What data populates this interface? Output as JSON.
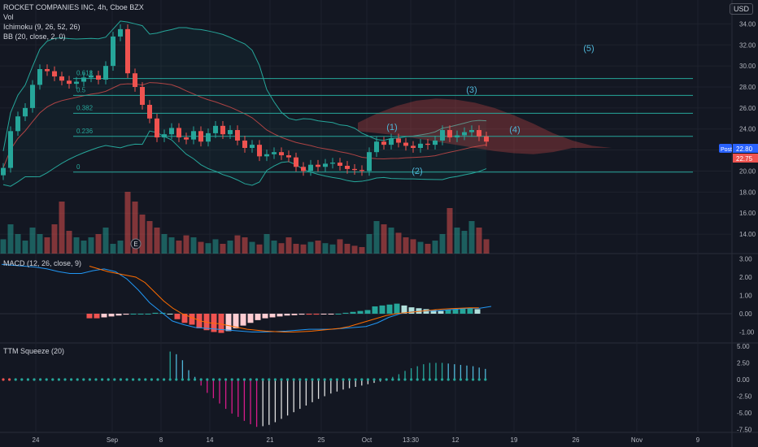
{
  "header": {
    "title": "ROCKET COMPANIES INC, 4h, Cboe BZX",
    "vol_label": "Vol",
    "ichimoku_label": "Ichimoku (9, 26, 52, 26)",
    "bb_label": "BB (20, close, 2, 0)",
    "currency": "USD"
  },
  "macd_label": "MACD (12, 26, close, 9)",
  "squeeze_label": "TTM Squeeze (20)",
  "price_tags": {
    "post_label": "Post",
    "post_value": "22.80",
    "last_value": "22.75"
  },
  "earnings_marker": "E",
  "colors": {
    "up": "#26a69a",
    "down": "#ef5350",
    "bg": "#131722",
    "grid": "#1e222d",
    "fib": "#26a69a"
  },
  "chart_data": [
    {
      "type": "candlestick",
      "title": "ROCKET COMPANIES INC, 4h, Cboe BZX",
      "ylim": [
        13,
        35.5
      ],
      "y_ticks": [
        "14.00",
        "16.00",
        "18.00",
        "20.00",
        "22.00",
        "24.00",
        "26.00",
        "28.00",
        "30.00",
        "32.00",
        "34.00"
      ],
      "x_ticks": [
        "24",
        "Sep",
        "8",
        "14",
        "21",
        "25",
        "Oct",
        "13:30",
        "12",
        "19",
        "26",
        "Nov",
        "9"
      ],
      "close": [
        20.3,
        23.8,
        25.2,
        26.0,
        28.2,
        29.7,
        29.5,
        29.0,
        28.6,
        28.3,
        28.5,
        28.9,
        29.1,
        28.7,
        30.0,
        32.8,
        33.5,
        29.3,
        28.0,
        26.3,
        25.0,
        23.2,
        23.5,
        24.1,
        23.2,
        23.0,
        23.8,
        22.8,
        23.6,
        24.3,
        23.5,
        23.9,
        22.9,
        22.2,
        22.5,
        21.4,
        21.6,
        21.8,
        21.5,
        21.3,
        20.4,
        20.0,
        20.6,
        20.4,
        20.7,
        20.8,
        20.5,
        20.2,
        20.1,
        20.0,
        21.8,
        22.8,
        22.5,
        23.1,
        22.7,
        22.4,
        22.2,
        22.6,
        22.5,
        22.9,
        23.9,
        23.2,
        23.4,
        23.7,
        23.9,
        23.3,
        22.8
      ],
      "volume_ylim": [
        0,
        100
      ],
      "volume": [
        22,
        45,
        30,
        20,
        40,
        30,
        25,
        45,
        80,
        35,
        25,
        20,
        25,
        30,
        40,
        15,
        20,
        95,
        80,
        60,
        50,
        40,
        30,
        25,
        20,
        28,
        25,
        18,
        16,
        22,
        15,
        20,
        28,
        25,
        18,
        14,
        30,
        20,
        16,
        25,
        15,
        14,
        18,
        20,
        16,
        14,
        22,
        15,
        12,
        10,
        30,
        50,
        45,
        40,
        32,
        25,
        22,
        18,
        15,
        20,
        30,
        70,
        40,
        35,
        50,
        40,
        22
      ],
      "ichimoku_cloud": {
        "top": [
          24.6,
          25.5,
          26.2,
          26.7,
          26.9,
          26.8,
          26.5,
          26.0,
          25.3,
          24.5,
          23.6,
          22.9,
          22.4,
          22.2
        ],
        "bottom": [
          23.8,
          23.6,
          23.4,
          23.1,
          22.8,
          22.5,
          22.2,
          21.9,
          21.7,
          21.6,
          21.8,
          22.2,
          22.2,
          22.2
        ]
      },
      "fib_levels": [
        {
          "label": "0.618",
          "value": 28.8
        },
        {
          "label": "0.5",
          "value": 27.2
        },
        {
          "label": "0.382",
          "value": 25.5
        },
        {
          "label": "0.236",
          "value": 23.3
        },
        {
          "label": "0",
          "value": 19.9
        }
      ],
      "wave_labels": [
        "(1)",
        "(2)",
        "(3)",
        "(4)",
        "(5)"
      ]
    },
    {
      "type": "histogram",
      "title": "MACD (12, 26, close, 9)",
      "ylim": [
        -1.3,
        3.2
      ],
      "y_ticks": [
        "3.00",
        "2.00",
        "1.00",
        "0.00",
        "-1.00"
      ],
      "histogram": [
        -0.25,
        -0.25,
        -0.2,
        -0.15,
        -0.1,
        -0.05,
        0,
        0,
        0,
        0.05,
        0.05,
        0,
        -0.3,
        -0.5,
        -0.6,
        -0.8,
        -0.9,
        -1.0,
        -1.05,
        -0.95,
        -0.8,
        -0.65,
        -0.5,
        -0.35,
        -0.25,
        -0.2,
        -0.15,
        -0.1,
        -0.08,
        -0.05,
        -0.05,
        -0.05,
        -0.03,
        -0.02,
        0,
        0.05,
        0.1,
        0.15,
        0.2,
        0.4,
        0.45,
        0.5,
        0.55,
        0.45,
        0.35,
        0.3,
        0.25,
        0.2,
        0.15,
        0.2,
        0.25,
        0.3,
        0.3,
        0.25
      ],
      "macd": [
        2.7,
        2.65,
        2.6,
        2.55,
        2.45,
        2.3,
        2.2,
        2.2,
        2.35,
        2.45,
        2.3,
        1.9,
        1.3,
        0.6,
        0.1,
        -0.4,
        -0.6,
        -0.75,
        -0.8,
        -0.85,
        -0.9,
        -0.95,
        -1.0,
        -1.0,
        -0.98,
        -0.95,
        -0.9,
        -0.85,
        -0.85,
        -0.85,
        -0.8,
        -0.75,
        -0.7,
        -0.5,
        -0.2,
        0,
        0.1,
        0.15,
        0.15,
        0.2,
        0.25,
        0.3,
        0.3,
        0.4
      ],
      "signal": [
        2.6,
        2.45,
        2.3,
        2.2,
        2.1,
        2.0,
        1.7,
        1.2,
        0.7,
        0.3,
        0,
        -0.2,
        -0.4,
        -0.5,
        -0.55,
        -0.65,
        -0.75,
        -0.85,
        -0.9,
        -0.95,
        -0.98,
        -1.0,
        -1.0,
        -0.98,
        -0.95,
        -0.9,
        -0.85,
        -0.8,
        -0.7,
        -0.55,
        -0.4,
        -0.25,
        -0.1,
        0,
        0.05,
        0.1,
        0.15,
        0.2,
        0.25,
        0.28,
        0.3,
        0.32,
        0.32
      ]
    },
    {
      "type": "histogram",
      "title": "TTM Squeeze (20)",
      "ylim": [
        -8,
        5.5
      ],
      "y_ticks": [
        "5.00",
        "2.50",
        "0.00",
        "-2.50",
        "-5.00",
        "-7.50"
      ],
      "values": [
        0,
        0,
        0,
        0,
        0,
        0,
        0,
        0,
        0,
        0,
        0,
        0,
        0,
        0,
        0,
        0,
        0,
        0,
        0,
        0,
        0,
        0,
        0,
        0,
        0,
        0,
        0,
        4.2,
        3.8,
        2.9,
        1.4,
        0.4,
        -0.9,
        -2.0,
        -2.8,
        -3.6,
        -4.4,
        -5.1,
        -5.6,
        -6.2,
        -6.7,
        -7.1,
        -7.0,
        -6.8,
        -6.4,
        -5.9,
        -5.4,
        -4.9,
        -4.4,
        -3.9,
        -3.4,
        -2.9,
        -2.5,
        -2.1,
        -1.8,
        -1.5,
        -1.3,
        -1.1,
        -0.9,
        -0.7,
        -0.5,
        -0.3,
        -0.1,
        0.4,
        0.8,
        1.3,
        1.7,
        2.0,
        2.3,
        2.5,
        2.5,
        2.5,
        2.4,
        2.3,
        2.2,
        2.1,
        2.0,
        1.8,
        1.6
      ]
    }
  ]
}
